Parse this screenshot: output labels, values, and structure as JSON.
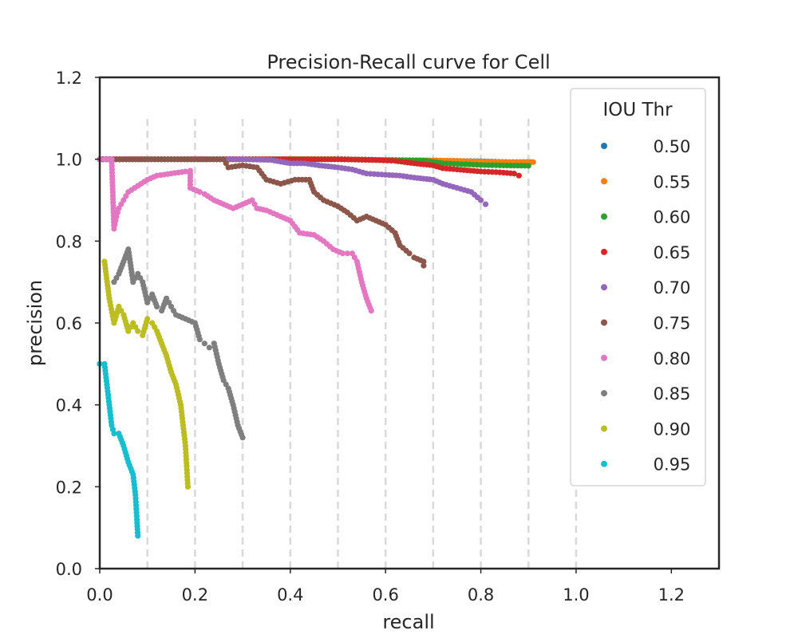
{
  "chart_data": {
    "type": "scatter",
    "title": "Precision-Recall curve for Cell",
    "xlabel": "recall",
    "ylabel": "precision",
    "xlim": [
      0.0,
      1.3
    ],
    "ylim": [
      0.0,
      1.2
    ],
    "xticks": [
      "0.0",
      "0.2",
      "0.4",
      "0.6",
      "0.8",
      "1.0",
      "1.2"
    ],
    "yticks": [
      "0.0",
      "0.2",
      "0.4",
      "0.6",
      "0.8",
      "1.0",
      "1.2"
    ],
    "grid": {
      "vertical_dashed_at": [
        0.1,
        0.2,
        0.3,
        0.4,
        0.5,
        0.6,
        0.7,
        0.8,
        0.9,
        1.0
      ],
      "y_extent": [
        0.0,
        1.1
      ]
    },
    "legend": {
      "title": "IOU Thr",
      "placement": "right"
    },
    "series": [
      {
        "name": "0.50",
        "color": "#1f77b4",
        "points": [
          [
            0.0,
            1.0
          ],
          [
            0.3,
            1.0
          ],
          [
            0.5,
            1.0
          ],
          [
            0.6,
            0.998
          ],
          [
            0.7,
            0.997
          ],
          [
            0.8,
            0.995
          ],
          [
            0.86,
            0.993
          ],
          [
            0.905,
            0.993
          ]
        ]
      },
      {
        "name": "0.55",
        "color": "#ff7f0e",
        "points": [
          [
            0.0,
            1.0
          ],
          [
            0.3,
            1.0
          ],
          [
            0.5,
            1.0
          ],
          [
            0.6,
            0.998
          ],
          [
            0.7,
            0.997
          ],
          [
            0.75,
            0.996
          ],
          [
            0.8,
            0.994
          ],
          [
            0.86,
            0.993
          ],
          [
            0.91,
            0.993
          ]
        ]
      },
      {
        "name": "0.60",
        "color": "#2ca02c",
        "points": [
          [
            0.0,
            1.0
          ],
          [
            0.3,
            1.0
          ],
          [
            0.5,
            1.0
          ],
          [
            0.6,
            0.998
          ],
          [
            0.68,
            0.997
          ],
          [
            0.72,
            0.99
          ],
          [
            0.76,
            0.988
          ],
          [
            0.8,
            0.986
          ],
          [
            0.84,
            0.985
          ],
          [
            0.9,
            0.984
          ]
        ]
      },
      {
        "name": "0.65",
        "color": "#d62728",
        "points": [
          [
            0.0,
            1.0
          ],
          [
            0.3,
            1.0
          ],
          [
            0.4,
            1.0
          ],
          [
            0.5,
            1.0
          ],
          [
            0.58,
            0.998
          ],
          [
            0.62,
            0.996
          ],
          [
            0.66,
            0.99
          ],
          [
            0.7,
            0.985
          ],
          [
            0.72,
            0.978
          ],
          [
            0.75,
            0.975
          ],
          [
            0.8,
            0.97
          ],
          [
            0.84,
            0.968
          ],
          [
            0.87,
            0.965
          ],
          [
            0.88,
            0.96
          ]
        ]
      },
      {
        "name": "0.70",
        "color": "#9467bd",
        "points": [
          [
            0.0,
            1.0
          ],
          [
            0.26,
            1.0
          ],
          [
            0.3,
            1.0
          ],
          [
            0.36,
            0.998
          ],
          [
            0.4,
            0.99
          ],
          [
            0.43,
            0.99
          ],
          [
            0.46,
            0.985
          ],
          [
            0.5,
            0.98
          ],
          [
            0.53,
            0.975
          ],
          [
            0.56,
            0.965
          ],
          [
            0.6,
            0.962
          ],
          [
            0.63,
            0.96
          ],
          [
            0.66,
            0.955
          ],
          [
            0.7,
            0.95
          ],
          [
            0.72,
            0.94
          ],
          [
            0.75,
            0.93
          ],
          [
            0.78,
            0.92
          ],
          [
            0.8,
            0.9
          ],
          [
            0.81,
            0.89
          ]
        ]
      },
      {
        "name": "0.75",
        "color": "#8c564b",
        "points": [
          [
            0.0,
            1.0
          ],
          [
            0.1,
            1.0
          ],
          [
            0.2,
            1.0
          ],
          [
            0.26,
            1.0
          ],
          [
            0.27,
            0.98
          ],
          [
            0.3,
            0.985
          ],
          [
            0.33,
            0.98
          ],
          [
            0.35,
            0.95
          ],
          [
            0.38,
            0.94
          ],
          [
            0.41,
            0.95
          ],
          [
            0.44,
            0.95
          ],
          [
            0.45,
            0.92
          ],
          [
            0.47,
            0.9
          ],
          [
            0.5,
            0.885
          ],
          [
            0.52,
            0.87
          ],
          [
            0.54,
            0.85
          ],
          [
            0.56,
            0.86
          ],
          [
            0.58,
            0.85
          ],
          [
            0.6,
            0.84
          ],
          [
            0.62,
            0.82
          ],
          [
            0.63,
            0.79
          ],
          [
            0.65,
            0.77
          ],
          [
            0.66,
            0.76
          ],
          [
            0.68,
            0.75
          ],
          [
            0.68,
            0.74
          ]
        ]
      },
      {
        "name": "0.80",
        "color": "#e377c2",
        "points": [
          [
            0.0,
            1.0
          ],
          [
            0.01,
            1.0
          ],
          [
            0.025,
            1.0
          ],
          [
            0.03,
            0.83
          ],
          [
            0.035,
            0.86
          ],
          [
            0.04,
            0.88
          ],
          [
            0.05,
            0.9
          ],
          [
            0.06,
            0.92
          ],
          [
            0.08,
            0.935
          ],
          [
            0.1,
            0.95
          ],
          [
            0.12,
            0.96
          ],
          [
            0.15,
            0.965
          ],
          [
            0.18,
            0.97
          ],
          [
            0.19,
            0.972
          ],
          [
            0.19,
            0.93
          ],
          [
            0.21,
            0.92
          ],
          [
            0.22,
            0.915
          ],
          [
            0.24,
            0.9
          ],
          [
            0.26,
            0.89
          ],
          [
            0.28,
            0.88
          ],
          [
            0.3,
            0.89
          ],
          [
            0.32,
            0.9
          ],
          [
            0.33,
            0.88
          ],
          [
            0.35,
            0.875
          ],
          [
            0.38,
            0.86
          ],
          [
            0.4,
            0.85
          ],
          [
            0.42,
            0.82
          ],
          [
            0.45,
            0.815
          ],
          [
            0.47,
            0.8
          ],
          [
            0.49,
            0.78
          ],
          [
            0.51,
            0.77
          ],
          [
            0.53,
            0.77
          ],
          [
            0.54,
            0.75
          ],
          [
            0.55,
            0.7
          ],
          [
            0.56,
            0.66
          ],
          [
            0.57,
            0.63
          ]
        ]
      },
      {
        "name": "0.85",
        "color": "#7f7f7f",
        "points": [
          [
            0.03,
            0.7
          ],
          [
            0.04,
            0.72
          ],
          [
            0.05,
            0.75
          ],
          [
            0.06,
            0.78
          ],
          [
            0.07,
            0.7
          ],
          [
            0.08,
            0.72
          ],
          [
            0.09,
            0.7
          ],
          [
            0.1,
            0.65
          ],
          [
            0.11,
            0.67
          ],
          [
            0.12,
            0.64
          ],
          [
            0.13,
            0.63
          ],
          [
            0.14,
            0.66
          ],
          [
            0.15,
            0.64
          ],
          [
            0.16,
            0.62
          ],
          [
            0.18,
            0.61
          ],
          [
            0.2,
            0.6
          ],
          [
            0.21,
            0.56
          ],
          [
            0.22,
            0.55
          ],
          [
            0.23,
            0.54
          ],
          [
            0.24,
            0.55
          ],
          [
            0.25,
            0.5
          ],
          [
            0.26,
            0.46
          ],
          [
            0.27,
            0.44
          ],
          [
            0.28,
            0.4
          ],
          [
            0.29,
            0.35
          ],
          [
            0.3,
            0.32
          ]
        ]
      },
      {
        "name": "0.90",
        "color": "#bcbd22",
        "points": [
          [
            0.01,
            0.75
          ],
          [
            0.02,
            0.66
          ],
          [
            0.03,
            0.6
          ],
          [
            0.04,
            0.64
          ],
          [
            0.05,
            0.62
          ],
          [
            0.06,
            0.58
          ],
          [
            0.07,
            0.6
          ],
          [
            0.08,
            0.58
          ],
          [
            0.09,
            0.57
          ],
          [
            0.1,
            0.61
          ],
          [
            0.11,
            0.6
          ],
          [
            0.12,
            0.58
          ],
          [
            0.13,
            0.55
          ],
          [
            0.14,
            0.52
          ],
          [
            0.15,
            0.48
          ],
          [
            0.16,
            0.45
          ],
          [
            0.17,
            0.4
          ],
          [
            0.18,
            0.3
          ],
          [
            0.185,
            0.2
          ]
        ]
      },
      {
        "name": "0.95",
        "color": "#17becf",
        "points": [
          [
            0.0,
            0.5
          ],
          [
            0.01,
            0.5
          ],
          [
            0.02,
            0.4
          ],
          [
            0.025,
            0.35
          ],
          [
            0.03,
            0.33
          ],
          [
            0.04,
            0.33
          ],
          [
            0.05,
            0.3
          ],
          [
            0.06,
            0.26
          ],
          [
            0.07,
            0.23
          ],
          [
            0.075,
            0.18
          ],
          [
            0.078,
            0.12
          ],
          [
            0.08,
            0.08
          ]
        ]
      }
    ]
  }
}
